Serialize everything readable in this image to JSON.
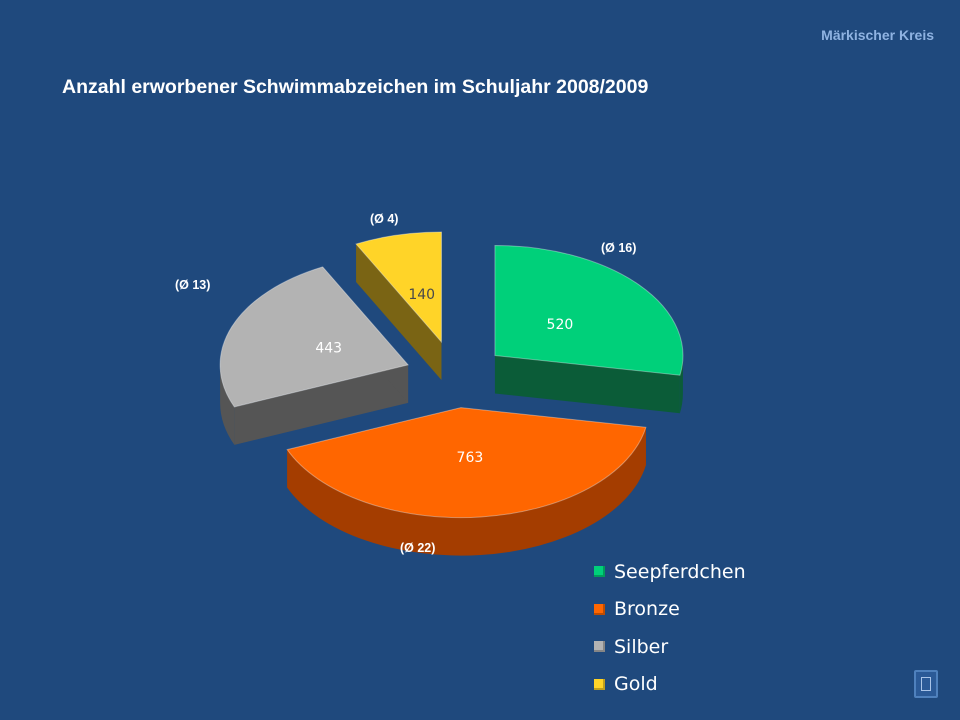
{
  "header": {
    "brand": "Märkischer Kreis",
    "title": "Anzahl erworbener Schwimmabzeichen im Schuljahr 2008/2009"
  },
  "chart_data": {
    "type": "pie",
    "title": "Anzahl erworbener Schwimmabzeichen im Schuljahr 2008/2009",
    "exploded": true,
    "three_d": true,
    "legend_position": "bottom-right",
    "categories": [
      "Seepferdchen",
      "Bronze",
      "Silber",
      "Gold"
    ],
    "values": [
      520,
      763,
      443,
      140
    ],
    "data_labels": [
      "520",
      "763",
      "443",
      "140"
    ],
    "averages": [
      "(Ø 16)",
      "(Ø 22)",
      "(Ø 13)",
      "(Ø 4)"
    ],
    "colors": [
      "#00d07a",
      "#ff6600",
      "#b3b3b3",
      "#ffd428"
    ],
    "side_colors": [
      "#0b5c38",
      "#a43d00",
      "#555555",
      "#7a6414"
    ]
  }
}
